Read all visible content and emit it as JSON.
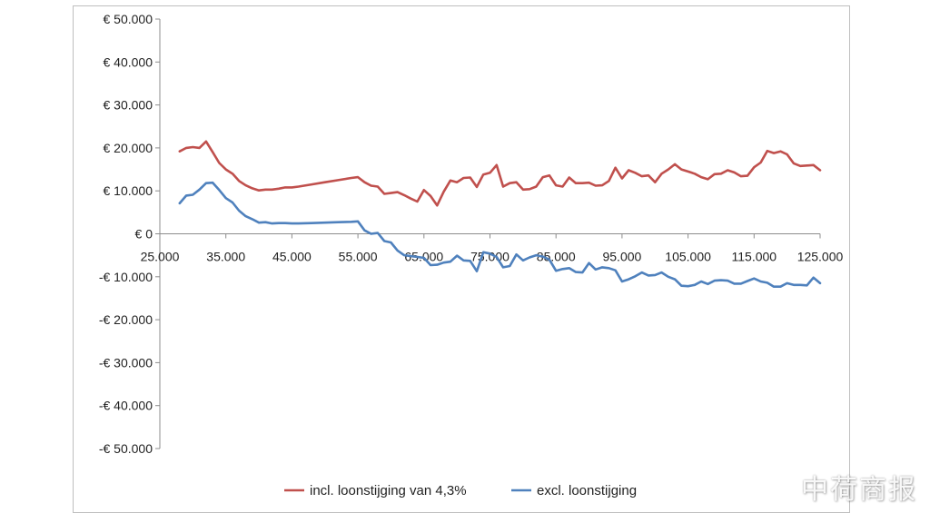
{
  "chart_data": {
    "type": "line",
    "title": "",
    "xlabel": "",
    "ylabel": "",
    "xlim": [
      25000,
      125000
    ],
    "ylim": [
      -50000,
      50000
    ],
    "x_ticks": [
      "25.000",
      "35.000",
      "45.000",
      "55.000",
      "65.000",
      "75.000",
      "85.000",
      "95.000",
      "105.000",
      "115.000",
      "125.000"
    ],
    "y_ticks": [
      "€ 50.000",
      "€ 40.000",
      "€ 30.000",
      "€ 20.000",
      "€ 10.000",
      "€ 0",
      "-€ 10.000",
      "-€ 20.000",
      "-€ 30.000",
      "-€ 40.000",
      "-€ 50.000"
    ],
    "legend_position": "bottom",
    "grid": false,
    "series": [
      {
        "name": "incl. loonstijging van 4,3%",
        "color": "#c0504d",
        "points": [
          [
            28000,
            19200
          ],
          [
            29000,
            20000
          ],
          [
            30000,
            20200
          ],
          [
            31000,
            20000
          ],
          [
            32000,
            21500
          ],
          [
            33000,
            19000
          ],
          [
            34000,
            16500
          ],
          [
            35000,
            15000
          ],
          [
            36000,
            14000
          ],
          [
            37000,
            12300
          ],
          [
            38000,
            11300
          ],
          [
            39000,
            10600
          ],
          [
            40000,
            10100
          ],
          [
            41000,
            10300
          ],
          [
            42000,
            10300
          ],
          [
            43000,
            10500
          ],
          [
            44000,
            10800
          ],
          [
            45000,
            10800
          ],
          [
            46000,
            11000
          ],
          [
            48000,
            11500
          ],
          [
            50000,
            12000
          ],
          [
            52000,
            12500
          ],
          [
            54000,
            13000
          ],
          [
            55000,
            13200
          ],
          [
            56000,
            12000
          ],
          [
            57000,
            11200
          ],
          [
            58000,
            11000
          ],
          [
            59000,
            9300
          ],
          [
            60000,
            9500
          ],
          [
            61000,
            9700
          ],
          [
            62000,
            9000
          ],
          [
            63000,
            8200
          ],
          [
            64000,
            7500
          ],
          [
            65000,
            10200
          ],
          [
            66000,
            8800
          ],
          [
            67000,
            6600
          ],
          [
            68000,
            9800
          ],
          [
            69000,
            12400
          ],
          [
            70000,
            12000
          ],
          [
            71000,
            13000
          ],
          [
            72000,
            13100
          ],
          [
            73000,
            10900
          ],
          [
            74000,
            13800
          ],
          [
            75000,
            14200
          ],
          [
            76000,
            16000
          ],
          [
            77000,
            11000
          ],
          [
            78000,
            11800
          ],
          [
            79000,
            12000
          ],
          [
            80000,
            10300
          ],
          [
            81000,
            10400
          ],
          [
            82000,
            11000
          ],
          [
            83000,
            13200
          ],
          [
            84000,
            13600
          ],
          [
            85000,
            11300
          ],
          [
            86000,
            11000
          ],
          [
            87000,
            13100
          ],
          [
            88000,
            11800
          ],
          [
            89000,
            11800
          ],
          [
            90000,
            11900
          ],
          [
            91000,
            11200
          ],
          [
            92000,
            11300
          ],
          [
            93000,
            12300
          ],
          [
            94000,
            15400
          ],
          [
            95000,
            12900
          ],
          [
            96000,
            14800
          ],
          [
            97000,
            14200
          ],
          [
            98000,
            13400
          ],
          [
            99000,
            13600
          ],
          [
            100000,
            12000
          ],
          [
            101000,
            14000
          ],
          [
            102000,
            15000
          ],
          [
            103000,
            16200
          ],
          [
            104000,
            15000
          ],
          [
            105000,
            14500
          ],
          [
            106000,
            14000
          ],
          [
            107000,
            13200
          ],
          [
            108000,
            12700
          ],
          [
            109000,
            13900
          ],
          [
            110000,
            14000
          ],
          [
            111000,
            14800
          ],
          [
            112000,
            14300
          ],
          [
            113000,
            13400
          ],
          [
            114000,
            13500
          ],
          [
            115000,
            15500
          ],
          [
            116000,
            16600
          ],
          [
            117000,
            19300
          ],
          [
            118000,
            18800
          ],
          [
            119000,
            19200
          ],
          [
            120000,
            18500
          ],
          [
            121000,
            16400
          ],
          [
            122000,
            15800
          ],
          [
            123000,
            15900
          ],
          [
            124000,
            16000
          ],
          [
            125000,
            14800
          ]
        ]
      },
      {
        "name": "excl. loonstijging",
        "color": "#4f81bd",
        "points": [
          [
            28000,
            7100
          ],
          [
            29000,
            8900
          ],
          [
            30000,
            9100
          ],
          [
            31000,
            10300
          ],
          [
            32000,
            11800
          ],
          [
            33000,
            11900
          ],
          [
            34000,
            10200
          ],
          [
            35000,
            8300
          ],
          [
            36000,
            7300
          ],
          [
            37000,
            5400
          ],
          [
            38000,
            4100
          ],
          [
            39000,
            3400
          ],
          [
            40000,
            2600
          ],
          [
            41000,
            2700
          ],
          [
            42000,
            2400
          ],
          [
            43000,
            2500
          ],
          [
            44000,
            2500
          ],
          [
            45000,
            2400
          ],
          [
            46000,
            2400
          ],
          [
            48000,
            2500
          ],
          [
            50000,
            2600
          ],
          [
            52000,
            2700
          ],
          [
            54000,
            2800
          ],
          [
            55000,
            2900
          ],
          [
            56000,
            800
          ],
          [
            57000,
            0
          ],
          [
            58000,
            200
          ],
          [
            59000,
            -1700
          ],
          [
            60000,
            -2000
          ],
          [
            61000,
            -3900
          ],
          [
            62000,
            -5000
          ],
          [
            63000,
            -5200
          ],
          [
            64000,
            -5400
          ],
          [
            65000,
            -5600
          ],
          [
            66000,
            -7300
          ],
          [
            67000,
            -7200
          ],
          [
            68000,
            -6700
          ],
          [
            69000,
            -6500
          ],
          [
            70000,
            -5100
          ],
          [
            71000,
            -6200
          ],
          [
            72000,
            -6300
          ],
          [
            73000,
            -8700
          ],
          [
            74000,
            -4300
          ],
          [
            75000,
            -4600
          ],
          [
            76000,
            -5400
          ],
          [
            77000,
            -7800
          ],
          [
            78000,
            -7500
          ],
          [
            79000,
            -4800
          ],
          [
            80000,
            -6200
          ],
          [
            81000,
            -5500
          ],
          [
            82000,
            -5000
          ],
          [
            83000,
            -5300
          ],
          [
            84000,
            -6000
          ],
          [
            85000,
            -8600
          ],
          [
            86000,
            -8200
          ],
          [
            87000,
            -8000
          ],
          [
            88000,
            -8900
          ],
          [
            89000,
            -9000
          ],
          [
            90000,
            -6800
          ],
          [
            91000,
            -8300
          ],
          [
            92000,
            -7800
          ],
          [
            93000,
            -8000
          ],
          [
            94000,
            -8500
          ],
          [
            95000,
            -11100
          ],
          [
            96000,
            -10600
          ],
          [
            97000,
            -9900
          ],
          [
            98000,
            -9000
          ],
          [
            99000,
            -9700
          ],
          [
            100000,
            -9600
          ],
          [
            101000,
            -9000
          ],
          [
            102000,
            -10000
          ],
          [
            103000,
            -10600
          ],
          [
            104000,
            -12100
          ],
          [
            105000,
            -12200
          ],
          [
            106000,
            -11900
          ],
          [
            107000,
            -11100
          ],
          [
            108000,
            -11700
          ],
          [
            109000,
            -10900
          ],
          [
            110000,
            -10800
          ],
          [
            111000,
            -10900
          ],
          [
            112000,
            -11600
          ],
          [
            113000,
            -11600
          ],
          [
            114000,
            -11000
          ],
          [
            115000,
            -10400
          ],
          [
            116000,
            -11100
          ],
          [
            117000,
            -11400
          ],
          [
            118000,
            -12300
          ],
          [
            119000,
            -12300
          ],
          [
            120000,
            -11500
          ],
          [
            121000,
            -11900
          ],
          [
            122000,
            -11900
          ],
          [
            123000,
            -12000
          ],
          [
            124000,
            -10200
          ],
          [
            125000,
            -11500
          ]
        ]
      }
    ]
  },
  "watermark": "中荷商报"
}
